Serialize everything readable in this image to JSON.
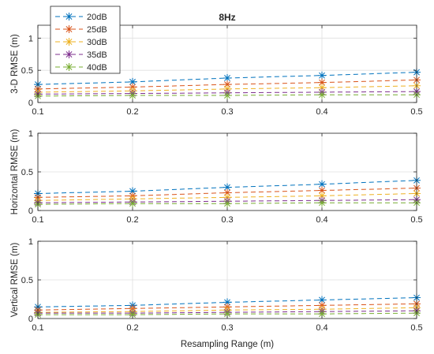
{
  "chart_data": {
    "type": "line",
    "title": "8Hz",
    "xlabel": "Resampling Range (m)",
    "x": [
      0.1,
      0.2,
      0.3,
      0.4,
      0.5
    ],
    "xticks": [
      "0.1",
      "0.2",
      "0.3",
      "0.4",
      "0.5"
    ],
    "xlim": [
      0.1,
      0.5
    ],
    "yticks": [
      "0",
      "0.5",
      "1"
    ],
    "legend": {
      "placement": "top-left",
      "entries": [
        "20dB",
        "25dB",
        "30dB",
        "35dB",
        "40dB"
      ]
    },
    "grid": true,
    "series_colors": [
      "#0072BD",
      "#D95319",
      "#EDB120",
      "#7E2F8E",
      "#77AC30"
    ],
    "panels": [
      {
        "ylabel": "3-D RMSE (m)",
        "ylim": [
          0,
          1.2
        ],
        "series": [
          {
            "name": "20dB",
            "values": [
              0.28,
              0.32,
              0.38,
              0.42,
              0.47
            ]
          },
          {
            "name": "25dB",
            "values": [
              0.21,
              0.24,
              0.28,
              0.31,
              0.35
            ]
          },
          {
            "name": "30dB",
            "values": [
              0.16,
              0.18,
              0.21,
              0.23,
              0.26
            ]
          },
          {
            "name": "35dB",
            "values": [
              0.13,
              0.14,
              0.15,
              0.16,
              0.17
            ]
          },
          {
            "name": "40dB",
            "values": [
              0.1,
              0.11,
              0.11,
              0.12,
              0.12
            ]
          }
        ]
      },
      {
        "ylabel": "Horizontal RMSE (m)",
        "ylim": [
          0,
          1
        ],
        "series": [
          {
            "name": "20dB",
            "values": [
              0.22,
              0.25,
              0.3,
              0.34,
              0.39
            ]
          },
          {
            "name": "25dB",
            "values": [
              0.17,
              0.19,
              0.23,
              0.26,
              0.29
            ]
          },
          {
            "name": "30dB",
            "values": [
              0.13,
              0.15,
              0.17,
              0.19,
              0.22
            ]
          },
          {
            "name": "35dB",
            "values": [
              0.1,
              0.11,
              0.12,
              0.13,
              0.14
            ]
          },
          {
            "name": "40dB",
            "values": [
              0.08,
              0.09,
              0.09,
              0.1,
              0.1
            ]
          }
        ]
      },
      {
        "ylabel": "Vertical RMSE (m)",
        "ylim": [
          0,
          1
        ],
        "series": [
          {
            "name": "20dB",
            "values": [
              0.15,
              0.17,
              0.21,
              0.24,
              0.27
            ]
          },
          {
            "name": "25dB",
            "values": [
              0.11,
              0.13,
              0.15,
              0.17,
              0.19
            ]
          },
          {
            "name": "30dB",
            "values": [
              0.08,
              0.09,
              0.11,
              0.12,
              0.14
            ]
          },
          {
            "name": "35dB",
            "values": [
              0.07,
              0.07,
              0.08,
              0.09,
              0.1
            ]
          },
          {
            "name": "40dB",
            "values": [
              0.05,
              0.05,
              0.06,
              0.06,
              0.07
            ]
          }
        ]
      }
    ]
  }
}
